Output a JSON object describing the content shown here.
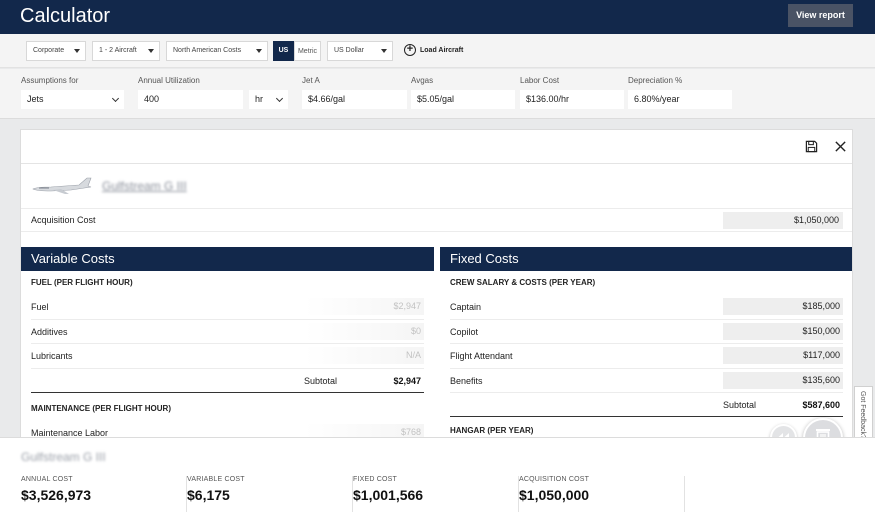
{
  "header": {
    "title": "Calculator",
    "view_report_label": "View report"
  },
  "filters": {
    "operation": "Corporate",
    "aircraft_count": "1 - 2 Aircraft",
    "cost_region": "North American Costs",
    "units_us": "US",
    "units_metric": "Metric",
    "currency": "US Dollar",
    "load_aircraft_label": "Load Aircraft"
  },
  "assumptions": {
    "for_label": "Assumptions for",
    "for_value": "Jets",
    "utilization_label": "Annual Utilization",
    "utilization_value": "400",
    "utilization_unit": "hr",
    "jeta_label": "Jet A",
    "jeta_value": "$4.66/gal",
    "avgas_label": "Avgas",
    "avgas_value": "$5.05/gal",
    "labor_label": "Labor Cost",
    "labor_value": "$136.00/hr",
    "depreciation_label": "Depreciation %",
    "depreciation_value": "6.80%/year"
  },
  "aircraft": {
    "name": "Gulfstream G III",
    "acquisition_label": "Acquisition Cost",
    "acquisition_value": "$1,050,000"
  },
  "variable_costs": {
    "title": "Variable Costs",
    "fuel_section": "FUEL (PER FLIGHT HOUR)",
    "fuel_rows": [
      {
        "label": "Fuel",
        "value": "$2,947"
      },
      {
        "label": "Additives",
        "value": "$0"
      },
      {
        "label": "Lubricants",
        "value": "N/A"
      }
    ],
    "subtotal_label": "Subtotal",
    "subtotal_value": "$2,947",
    "maintenance_section": "MAINTENANCE (PER FLIGHT HOUR)",
    "maintenance_rows": [
      {
        "label": "Maintenance Labor",
        "value": "$768"
      }
    ]
  },
  "fixed_costs": {
    "title": "Fixed Costs",
    "crew_section": "CREW SALARY & COSTS (PER YEAR)",
    "crew_rows": [
      {
        "label": "Captain",
        "value": "$185,000"
      },
      {
        "label": "Copilot",
        "value": "$150,000"
      },
      {
        "label": "Flight Attendant",
        "value": "$117,000"
      },
      {
        "label": "Benefits",
        "value": "$135,600"
      }
    ],
    "subtotal_label": "Subtotal",
    "subtotal_value": "$587,600",
    "hangar_section": "HANGAR (PER YEAR)"
  },
  "summary": {
    "aircraft_name": "Gulfstream G III",
    "items": [
      {
        "label": "ANNUAL COST",
        "value": "$3,526,973"
      },
      {
        "label": "VARIABLE COST",
        "value": "$6,175"
      },
      {
        "label": "FIXED COST",
        "value": "$1,001,566"
      },
      {
        "label": "ACQUISITION COST",
        "value": "$1,050,000"
      }
    ]
  },
  "feedback_label": "Got Feedback?",
  "colors": {
    "navy": "#12284b",
    "button_gray": "#4a5365"
  }
}
